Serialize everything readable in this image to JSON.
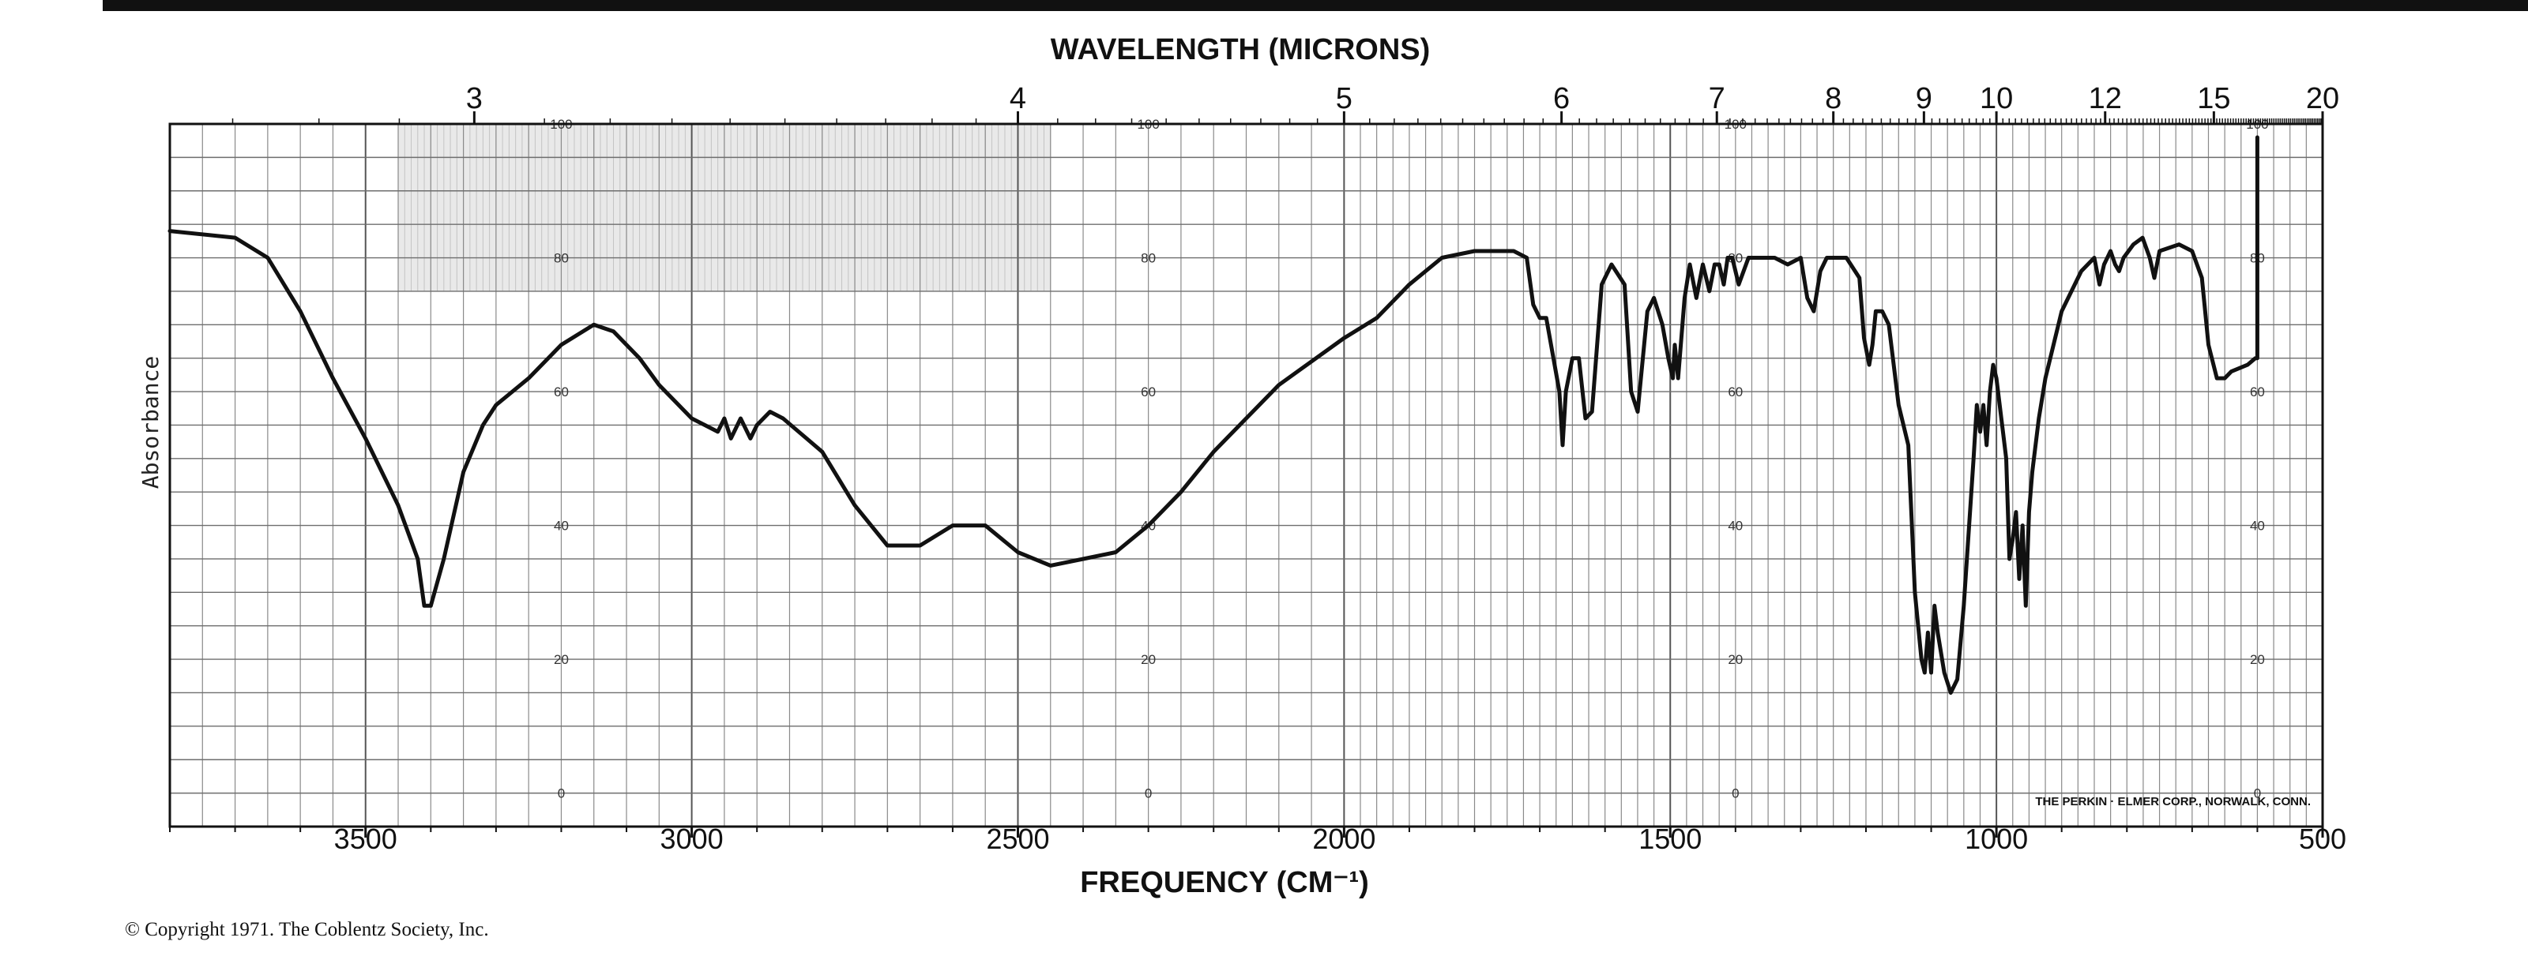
{
  "chart_data": {
    "type": "line",
    "title": "",
    "top_axis_title": "WAVELENGTH (MICRONS)",
    "xlabel": "FREQUENCY (CM⁻¹)",
    "ylabel": "Absorbance",
    "xlim": [
      3800,
      500
    ],
    "ylim": [
      -5,
      100
    ],
    "grid": true,
    "x_ticks": [
      3500,
      3000,
      2500,
      2000,
      1500,
      1000,
      500
    ],
    "top_ticks": [
      {
        "label": "3",
        "wavelength_um": 3
      },
      {
        "label": "4",
        "wavelength_um": 4
      },
      {
        "label": "5",
        "wavelength_um": 5
      },
      {
        "label": "6",
        "wavelength_um": 6
      },
      {
        "label": "7",
        "wavelength_um": 7
      },
      {
        "label": "8",
        "wavelength_um": 8
      },
      {
        "label": "9",
        "wavelength_um": 9
      },
      {
        "label": "10",
        "wavelength_um": 10
      },
      {
        "label": "12",
        "wavelength_um": 12
      },
      {
        "label": "15",
        "wavelength_um": 15
      },
      {
        "label": "20",
        "wavelength_um": 20
      }
    ],
    "scale_labels": [
      "100",
      "80",
      "60",
      "40",
      "20",
      "0"
    ],
    "scale_label_columns": [
      3200,
      2300,
      1400,
      600
    ],
    "series": [
      {
        "points": [
          [
            3800,
            84
          ],
          [
            3700,
            83
          ],
          [
            3650,
            80
          ],
          [
            3600,
            72
          ],
          [
            3550,
            62
          ],
          [
            3500,
            53
          ],
          [
            3450,
            43
          ],
          [
            3420,
            35
          ],
          [
            3410,
            28
          ],
          [
            3400,
            28
          ],
          [
            3380,
            35
          ],
          [
            3350,
            48
          ],
          [
            3320,
            55
          ],
          [
            3300,
            58
          ],
          [
            3250,
            62
          ],
          [
            3200,
            67
          ],
          [
            3150,
            70
          ],
          [
            3120,
            69
          ],
          [
            3080,
            65
          ],
          [
            3050,
            61
          ],
          [
            3000,
            56
          ],
          [
            2980,
            55
          ],
          [
            2960,
            54
          ],
          [
            2950,
            56
          ],
          [
            2940,
            53
          ],
          [
            2925,
            56
          ],
          [
            2910,
            53
          ],
          [
            2900,
            55
          ],
          [
            2880,
            57
          ],
          [
            2860,
            56
          ],
          [
            2800,
            51
          ],
          [
            2750,
            43
          ],
          [
            2700,
            37
          ],
          [
            2650,
            37
          ],
          [
            2600,
            40
          ],
          [
            2550,
            40
          ],
          [
            2500,
            36
          ],
          [
            2450,
            34
          ],
          [
            2400,
            35
          ],
          [
            2350,
            36
          ],
          [
            2300,
            40
          ],
          [
            2250,
            45
          ],
          [
            2200,
            51
          ],
          [
            2100,
            61
          ],
          [
            2000,
            68
          ],
          [
            1950,
            71
          ],
          [
            1900,
            76
          ],
          [
            1850,
            80
          ],
          [
            1800,
            81
          ],
          [
            1740,
            81
          ],
          [
            1720,
            80
          ],
          [
            1710,
            73
          ],
          [
            1700,
            71
          ],
          [
            1690,
            71
          ],
          [
            1670,
            60
          ],
          [
            1665,
            52
          ],
          [
            1660,
            60
          ],
          [
            1650,
            65
          ],
          [
            1640,
            65
          ],
          [
            1630,
            56
          ],
          [
            1620,
            57
          ],
          [
            1605,
            76
          ],
          [
            1590,
            79
          ],
          [
            1570,
            76
          ],
          [
            1560,
            60
          ],
          [
            1550,
            57
          ],
          [
            1535,
            72
          ],
          [
            1525,
            74
          ],
          [
            1512,
            70
          ],
          [
            1503,
            65
          ],
          [
            1496,
            62
          ],
          [
            1493,
            67
          ],
          [
            1488,
            62
          ],
          [
            1478,
            74
          ],
          [
            1470,
            79
          ],
          [
            1460,
            74
          ],
          [
            1450,
            79
          ],
          [
            1440,
            75
          ],
          [
            1432,
            79
          ],
          [
            1425,
            79
          ],
          [
            1418,
            76
          ],
          [
            1412,
            80
          ],
          [
            1405,
            80
          ],
          [
            1395,
            76
          ],
          [
            1380,
            80
          ],
          [
            1340,
            80
          ],
          [
            1320,
            79
          ],
          [
            1300,
            80
          ],
          [
            1290,
            74
          ],
          [
            1280,
            72
          ],
          [
            1270,
            78
          ],
          [
            1260,
            80
          ],
          [
            1230,
            80
          ],
          [
            1210,
            77
          ],
          [
            1203,
            68
          ],
          [
            1195,
            64
          ],
          [
            1190,
            67
          ],
          [
            1185,
            72
          ],
          [
            1175,
            72
          ],
          [
            1165,
            70
          ],
          [
            1150,
            58
          ],
          [
            1135,
            52
          ],
          [
            1125,
            30
          ],
          [
            1115,
            20
          ],
          [
            1110,
            18
          ],
          [
            1105,
            24
          ],
          [
            1100,
            18
          ],
          [
            1095,
            28
          ],
          [
            1090,
            24
          ],
          [
            1080,
            18
          ],
          [
            1070,
            15
          ],
          [
            1060,
            17
          ],
          [
            1050,
            28
          ],
          [
            1035,
            50
          ],
          [
            1030,
            58
          ],
          [
            1025,
            54
          ],
          [
            1020,
            58
          ],
          [
            1015,
            52
          ],
          [
            1010,
            60
          ],
          [
            1005,
            64
          ],
          [
            1000,
            62
          ],
          [
            990,
            54
          ],
          [
            985,
            50
          ],
          [
            980,
            35
          ],
          [
            975,
            38
          ],
          [
            970,
            42
          ],
          [
            965,
            32
          ],
          [
            960,
            40
          ],
          [
            955,
            28
          ],
          [
            950,
            42
          ],
          [
            945,
            48
          ],
          [
            935,
            56
          ],
          [
            925,
            62
          ],
          [
            900,
            72
          ],
          [
            870,
            78
          ],
          [
            850,
            80
          ],
          [
            842,
            76
          ],
          [
            835,
            79
          ],
          [
            825,
            81
          ],
          [
            818,
            79
          ],
          [
            812,
            78
          ],
          [
            805,
            80
          ],
          [
            790,
            82
          ],
          [
            776,
            83
          ],
          [
            765,
            80
          ],
          [
            758,
            77
          ],
          [
            750,
            81
          ],
          [
            720,
            82
          ],
          [
            700,
            81
          ],
          [
            685,
            77
          ],
          [
            675,
            67
          ],
          [
            662,
            62
          ],
          [
            650,
            62
          ],
          [
            640,
            63
          ],
          [
            615,
            64
          ],
          [
            603,
            65
          ],
          [
            600,
            65
          ],
          [
            600,
            98
          ]
        ]
      }
    ]
  },
  "printer_credit": "THE PERKIN · ELMER CORP., NORWALK, CONN.",
  "copyright": "© Copyright 1971.  The Coblentz Society, Inc."
}
